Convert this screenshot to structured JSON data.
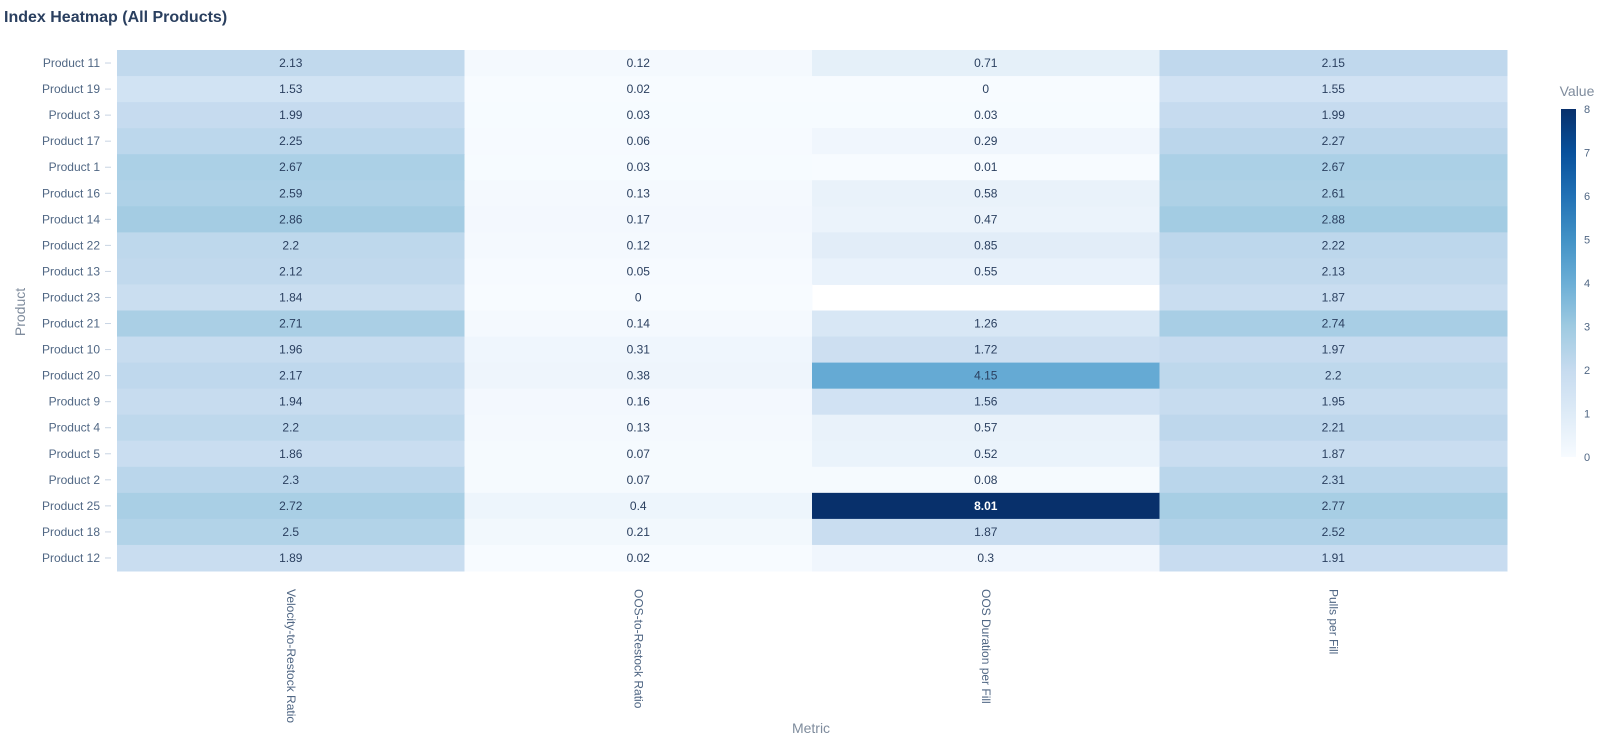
{
  "chart_data": {
    "type": "heatmap",
    "title": "Index Heatmap (All Products)",
    "xlabel": "Metric",
    "ylabel": "Product",
    "columns": [
      "Velocity-to-Restock Ratio",
      "OOS-to-Restock Ratio",
      "OOS Duration per Fill",
      "Pulls per Fill"
    ],
    "rows": [
      "Product 11",
      "Product 19",
      "Product 3",
      "Product 17",
      "Product 1",
      "Product 16",
      "Product 14",
      "Product 22",
      "Product 13",
      "Product 23",
      "Product 21",
      "Product 10",
      "Product 20",
      "Product 9",
      "Product 4",
      "Product 5",
      "Product 2",
      "Product 25",
      "Product 18",
      "Product 12"
    ],
    "values": [
      [
        2.13,
        0.12,
        0.71,
        2.15
      ],
      [
        1.53,
        0.02,
        0,
        1.55
      ],
      [
        1.99,
        0.03,
        0.03,
        1.99
      ],
      [
        2.25,
        0.06,
        0.29,
        2.27
      ],
      [
        2.67,
        0.03,
        0.01,
        2.67
      ],
      [
        2.59,
        0.13,
        0.58,
        2.61
      ],
      [
        2.86,
        0.17,
        0.47,
        2.88
      ],
      [
        2.2,
        0.12,
        0.85,
        2.22
      ],
      [
        2.12,
        0.05,
        0.55,
        2.13
      ],
      [
        1.84,
        0,
        null,
        1.87
      ],
      [
        2.71,
        0.14,
        1.26,
        2.74
      ],
      [
        1.96,
        0.31,
        1.72,
        1.97
      ],
      [
        2.17,
        0.38,
        4.15,
        2.2
      ],
      [
        1.94,
        0.16,
        1.56,
        1.95
      ],
      [
        2.2,
        0.13,
        0.57,
        2.21
      ],
      [
        1.86,
        0.07,
        0.52,
        1.87
      ],
      [
        2.3,
        0.07,
        0.08,
        2.31
      ],
      [
        2.72,
        0.4,
        8.01,
        2.77
      ],
      [
        2.5,
        0.21,
        1.87,
        2.52
      ],
      [
        1.89,
        0.02,
        0.3,
        1.91
      ]
    ],
    "colorscale": "Blues",
    "colorbar": {
      "title": "Value",
      "range": [
        0,
        8
      ],
      "ticks": [
        0,
        1,
        2,
        3,
        4,
        5,
        6,
        7,
        8
      ]
    }
  }
}
